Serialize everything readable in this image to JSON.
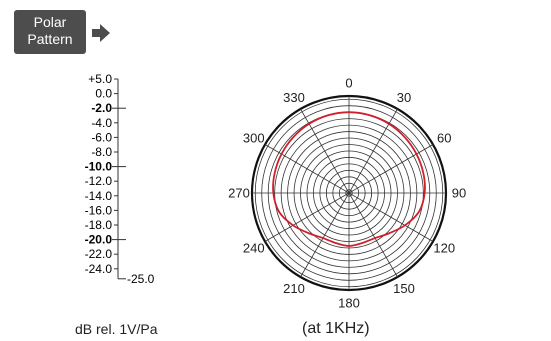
{
  "badge": {
    "line1": "Polar",
    "line2": "Pattern"
  },
  "scale": {
    "labels": [
      {
        "text": "+5.0",
        "bold": false
      },
      {
        "text": "0.0",
        "bold": false
      },
      {
        "text": "-2.0",
        "bold": true
      },
      {
        "text": "-4.0",
        "bold": false
      },
      {
        "text": "-6.0",
        "bold": false
      },
      {
        "text": "-8.0",
        "bold": false
      },
      {
        "text": "-10.0",
        "bold": true
      },
      {
        "text": "-12.0",
        "bold": false
      },
      {
        "text": "-14.0",
        "bold": false
      },
      {
        "text": "-16.0",
        "bold": false
      },
      {
        "text": "-18.0",
        "bold": false
      },
      {
        "text": "-20.0",
        "bold": true
      },
      {
        "text": "-22.0",
        "bold": false
      },
      {
        "text": "-24.0",
        "bold": false
      }
    ],
    "end_label": "-25.0",
    "caption": "dB rel. 1V/Pa"
  },
  "chart_data": {
    "type": "polar",
    "angle_labels": [
      "0",
      "30",
      "60",
      "90",
      "120",
      "150",
      "180",
      "210",
      "240",
      "270",
      "300",
      "330"
    ],
    "series": [
      {
        "color": "#d0202a",
        "angles_deg": [
          0,
          15,
          30,
          45,
          60,
          75,
          90,
          105,
          120,
          135,
          150,
          165,
          180,
          195,
          210,
          225,
          240,
          255,
          270,
          285,
          300,
          315,
          330,
          345
        ],
        "level_db": [
          0,
          -0.1,
          -0.3,
          -0.6,
          -0.9,
          -1.2,
          -1.6,
          -2.6,
          -5.0,
          -7.4,
          -8.9,
          -9.0,
          -8.6,
          -9.0,
          -8.9,
          -7.4,
          -5.0,
          -2.6,
          -1.6,
          -1.2,
          -0.9,
          -0.6,
          -0.3,
          -0.1
        ]
      }
    ],
    "grid": true,
    "caption": "(at 1KHz)",
    "rlim": [
      -25,
      5
    ]
  }
}
